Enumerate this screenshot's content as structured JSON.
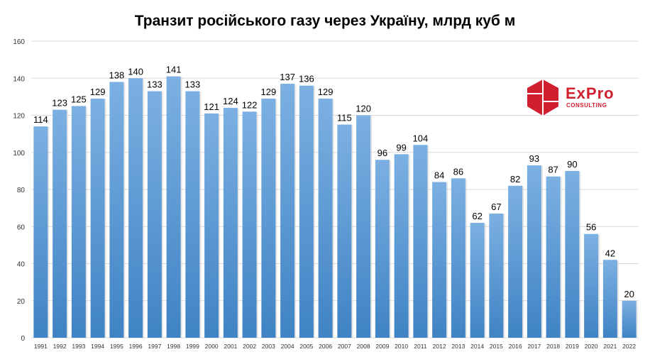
{
  "chart_data": {
    "type": "bar",
    "title": "Транзит російського газу через Україну, млрд куб м",
    "categories": [
      "1991",
      "1992",
      "1993",
      "1994",
      "1995",
      "1996",
      "1997",
      "1998",
      "1999",
      "2000",
      "2001",
      "2002",
      "2003",
      "2004",
      "2005",
      "2006",
      "2007",
      "2008",
      "2009",
      "2010",
      "2011",
      "2012",
      "2013",
      "2014",
      "2015",
      "2016",
      "2017",
      "2018",
      "2019",
      "2020",
      "2021",
      "2022"
    ],
    "values": [
      114,
      123,
      125,
      129,
      138,
      140,
      133,
      141,
      133,
      121,
      124,
      122,
      129,
      137,
      136,
      129,
      115,
      120,
      96,
      99,
      104,
      84,
      86,
      62,
      67,
      82,
      93,
      87,
      90,
      56,
      42,
      20
    ],
    "ylim": [
      0,
      160
    ],
    "yticks": [
      0,
      20,
      40,
      60,
      80,
      100,
      120,
      140,
      160
    ],
    "grid": true,
    "xlabel": "",
    "ylabel": "",
    "colors": {
      "bar_top": "#7cb0e2",
      "bar_bottom": "#3f83c4",
      "grid": "#d9d9d9"
    }
  },
  "logo": {
    "word": "ExPro",
    "sub": "CONSULTING",
    "color": "#d0202f"
  }
}
